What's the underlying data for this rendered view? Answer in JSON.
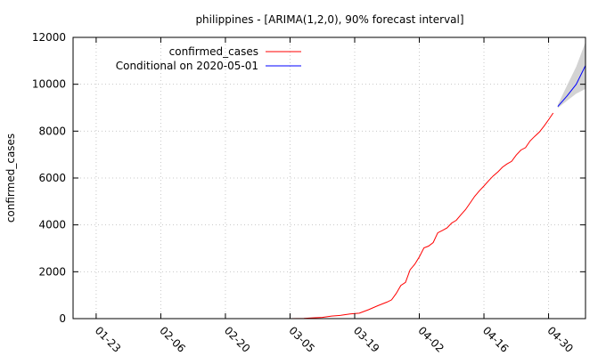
{
  "chart_data": {
    "type": "line",
    "title": "philippines -  [ARIMA(1,2,0), 90% forecast interval]",
    "xlabel": "",
    "ylabel": "confirmed_cases",
    "xlim": [
      "2020-01-18",
      "2020-05-08"
    ],
    "ylim": [
      0,
      12000
    ],
    "x_tick_labels": [
      {
        "date": "2020-01-23",
        "label": "01-23"
      },
      {
        "date": "2020-02-06",
        "label": "02-06"
      },
      {
        "date": "2020-02-20",
        "label": "02-20"
      },
      {
        "date": "2020-03-05",
        "label": "03-05"
      },
      {
        "date": "2020-03-19",
        "label": "03-19"
      },
      {
        "date": "2020-04-02",
        "label": "04-02"
      },
      {
        "date": "2020-04-16",
        "label": "04-16"
      },
      {
        "date": "2020-04-30",
        "label": "04-30"
      }
    ],
    "y_ticks": [
      0,
      2000,
      4000,
      6000,
      8000,
      10000,
      12000
    ],
    "grid": true,
    "legend_position": "top-left",
    "series": [
      {
        "name": "confirmed_cases",
        "color": "#ff0000",
        "points": [
          [
            "2020-03-05",
            0
          ],
          [
            "2020-03-08",
            10
          ],
          [
            "2020-03-10",
            33
          ],
          [
            "2020-03-12",
            52
          ],
          [
            "2020-03-14",
            111
          ],
          [
            "2020-03-16",
            142
          ],
          [
            "2020-03-18",
            202
          ],
          [
            "2020-03-20",
            230
          ],
          [
            "2020-03-22",
            380
          ],
          [
            "2020-03-24",
            552
          ],
          [
            "2020-03-26",
            707
          ],
          [
            "2020-03-27",
            803
          ],
          [
            "2020-03-28",
            1075
          ],
          [
            "2020-03-29",
            1418
          ],
          [
            "2020-03-30",
            1546
          ],
          [
            "2020-03-31",
            2084
          ],
          [
            "2020-04-01",
            2311
          ],
          [
            "2020-04-02",
            2633
          ],
          [
            "2020-04-03",
            3018
          ],
          [
            "2020-04-04",
            3094
          ],
          [
            "2020-04-05",
            3246
          ],
          [
            "2020-04-06",
            3660
          ],
          [
            "2020-04-07",
            3764
          ],
          [
            "2020-04-08",
            3870
          ],
          [
            "2020-04-09",
            4076
          ],
          [
            "2020-04-10",
            4195
          ],
          [
            "2020-04-11",
            4428
          ],
          [
            "2020-04-12",
            4648
          ],
          [
            "2020-04-13",
            4932
          ],
          [
            "2020-04-14",
            5223
          ],
          [
            "2020-04-15",
            5453
          ],
          [
            "2020-04-16",
            5660
          ],
          [
            "2020-04-17",
            5878
          ],
          [
            "2020-04-18",
            6087
          ],
          [
            "2020-04-19",
            6259
          ],
          [
            "2020-04-20",
            6459
          ],
          [
            "2020-04-21",
            6599
          ],
          [
            "2020-04-22",
            6710
          ],
          [
            "2020-04-23",
            6981
          ],
          [
            "2020-04-24",
            7192
          ],
          [
            "2020-04-25",
            7294
          ],
          [
            "2020-04-26",
            7579
          ],
          [
            "2020-04-27",
            7777
          ],
          [
            "2020-04-28",
            7958
          ],
          [
            "2020-04-29",
            8212
          ],
          [
            "2020-04-30",
            8488
          ],
          [
            "2020-05-01",
            8772
          ]
        ]
      },
      {
        "name": "Conditional on 2020-05-01",
        "color": "#0000ff",
        "points": [
          [
            "2020-05-02",
            9050
          ],
          [
            "2020-05-04",
            9500
          ],
          [
            "2020-05-06",
            10000
          ],
          [
            "2020-05-08",
            10800
          ]
        ]
      }
    ],
    "forecast_interval": {
      "level": "90%",
      "color": "#c8c8c8",
      "points": [
        [
          "2020-05-02",
          8980,
          9120
        ],
        [
          "2020-05-04",
          9300,
          9950
        ],
        [
          "2020-05-06",
          9600,
          10750
        ],
        [
          "2020-05-08",
          9800,
          11800
        ]
      ]
    }
  }
}
